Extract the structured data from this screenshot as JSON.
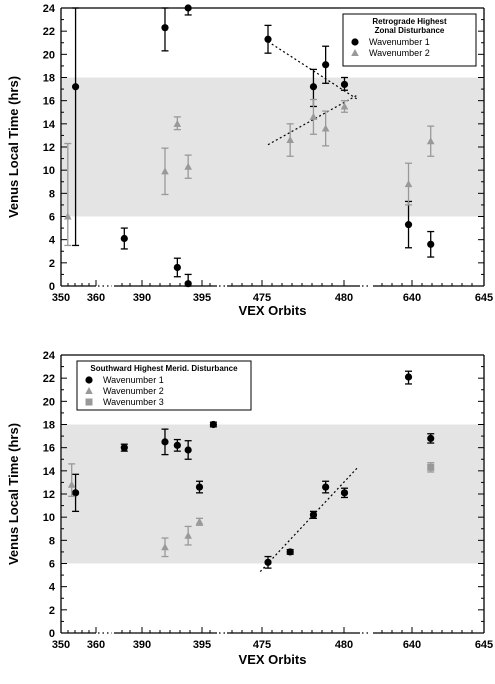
{
  "chart_data": [
    {
      "type": "scatter",
      "ylabel": "Venus Local Time (hrs)",
      "xlabel": "VEX Orbits",
      "ylim": [
        0,
        24
      ],
      "yticks": [
        0,
        2,
        4,
        6,
        8,
        10,
        12,
        14,
        16,
        18,
        20,
        22,
        24
      ],
      "x_tick_labels": [
        "350",
        "360",
        "390",
        "395",
        "475",
        "480",
        "640",
        "645"
      ],
      "x_axis_note": "broken axis with dotted gaps",
      "shaded_band": [
        6,
        18
      ],
      "legend": {
        "title_lines": [
          "Retrograde Highest",
          "Zonal Disturbance"
        ],
        "placement": "top-right"
      },
      "series": [
        {
          "name": "Wavenumber 1",
          "marker": "circle",
          "color": "#000000",
          "points": [
            {
              "x": 356,
              "y": 17.2,
              "err_low": 13.7,
              "err_high": 24
            },
            {
              "x": 382,
              "y": 4.1,
              "err_low": 0.9,
              "err_high": 0.9
            },
            {
              "x": 389.9,
              "y": 22.3,
              "err_low": 2.0,
              "err_high": 1.7
            },
            {
              "x": 392.3,
              "y": 1.6,
              "err_low": 0.8,
              "err_high": 0.8
            },
            {
              "x": 394.4,
              "y": 24.0,
              "err_low": 0.6,
              "err_high": 0
            },
            {
              "x": 394.4,
              "y": 0.2,
              "err_low": 0.2,
              "err_high": 0.8
            },
            {
              "x": 473.7,
              "y": 21.3,
              "err_low": 1.2,
              "err_high": 1.2
            },
            {
              "x": 477.8,
              "y": 17.2,
              "err_low": 1.7,
              "err_high": 1.5
            },
            {
              "x": 478.9,
              "y": 19.1,
              "err_low": 1.6,
              "err_high": 1.6
            },
            {
              "x": 480.6,
              "y": 17.4,
              "err_low": 0.5,
              "err_high": 0.6
            },
            {
              "x": 638.2,
              "y": 5.3,
              "err_low": 2.0,
              "err_high": 2.0
            },
            {
              "x": 640.2,
              "y": 3.6,
              "err_low": 1.1,
              "err_high": 1.1
            }
          ]
        },
        {
          "name": "Wavenumber 2",
          "marker": "triangle",
          "color": "#999999",
          "points": [
            {
              "x": 352.8,
              "y": 6.0,
              "err_low": 2.5,
              "err_high": 6.3
            },
            {
              "x": 389.9,
              "y": 9.9,
              "err_low": 2.0,
              "err_high": 2.0
            },
            {
              "x": 392.3,
              "y": 14.0,
              "err_low": 0.5,
              "err_high": 0.6
            },
            {
              "x": 394.4,
              "y": 10.3,
              "err_low": 1.0,
              "err_high": 1.0
            },
            {
              "x": 475.7,
              "y": 12.6,
              "err_low": 1.4,
              "err_high": 1.4
            },
            {
              "x": 477.8,
              "y": 14.6,
              "err_low": 1.5,
              "err_high": 1.5
            },
            {
              "x": 478.9,
              "y": 13.6,
              "err_low": 1.5,
              "err_high": 1.5
            },
            {
              "x": 480.6,
              "y": 15.5,
              "err_low": 0.5,
              "err_high": 0.5
            },
            {
              "x": 638.2,
              "y": 8.8,
              "err_low": 1.8,
              "err_high": 1.8
            },
            {
              "x": 640.2,
              "y": 12.5,
              "err_low": 1.3,
              "err_high": 1.3
            }
          ]
        }
      ],
      "trend_lines": [
        {
          "x": [
            473.7,
            481.8
          ],
          "y": [
            21.1,
            16.1
          ]
        },
        {
          "x": [
            473.7,
            481.8
          ],
          "y": [
            12.2,
            16.5
          ]
        }
      ]
    },
    {
      "type": "scatter",
      "ylabel": "Venus Local Time (hrs)",
      "xlabel": "VEX Orbits",
      "ylim": [
        0,
        24
      ],
      "yticks": [
        0,
        2,
        4,
        6,
        8,
        10,
        12,
        14,
        16,
        18,
        20,
        22,
        24
      ],
      "x_tick_labels": [
        "350",
        "360",
        "390",
        "395",
        "475",
        "480",
        "640",
        "645"
      ],
      "x_axis_note": "broken axis with dotted gaps",
      "shaded_band": [
        6,
        18
      ],
      "legend": {
        "title_lines": [
          "Southward Highest Merid. Disturbance"
        ],
        "placement": "top-left"
      },
      "series": [
        {
          "name": "Wavenumber 1",
          "marker": "circle",
          "color": "#000000",
          "points": [
            {
              "x": 356,
              "y": 12.1,
              "err_low": 1.6,
              "err_high": 1.6
            },
            {
              "x": 382,
              "y": 16.0,
              "err_low": 0.3,
              "err_high": 0.3
            },
            {
              "x": 389.9,
              "y": 16.5,
              "err_low": 1.1,
              "err_high": 1.1
            },
            {
              "x": 392.3,
              "y": 16.2,
              "err_low": 0.5,
              "err_high": 0.5
            },
            {
              "x": 394.4,
              "y": 15.8,
              "err_low": 0.8,
              "err_high": 0.8
            },
            {
              "x": 396.6,
              "y": 12.6,
              "err_low": 0.5,
              "err_high": 0.5
            },
            {
              "x": 399.3,
              "y": 18.0,
              "err_low": 0.2,
              "err_high": 0.2
            },
            {
              "x": 473.7,
              "y": 6.1,
              "err_low": 0.5,
              "err_high": 0.5
            },
            {
              "x": 475.7,
              "y": 7.0,
              "err_low": 0.2,
              "err_high": 0.2
            },
            {
              "x": 477.8,
              "y": 10.2,
              "err_low": 0.3,
              "err_high": 0.3
            },
            {
              "x": 478.9,
              "y": 12.6,
              "err_low": 0.5,
              "err_high": 0.5
            },
            {
              "x": 480.6,
              "y": 12.1,
              "err_low": 0.4,
              "err_high": 0.4
            },
            {
              "x": 638.2,
              "y": 22.1,
              "err_low": 0.6,
              "err_high": 0.5
            },
            {
              "x": 640.2,
              "y": 16.8,
              "err_low": 0.4,
              "err_high": 0.4
            }
          ]
        },
        {
          "name": "Wavenumber 2",
          "marker": "triangle",
          "color": "#999999",
          "points": [
            {
              "x": 354.4,
              "y": 12.8,
              "err_low": 1.0,
              "err_high": 1.8
            },
            {
              "x": 389.9,
              "y": 7.4,
              "err_low": 0.8,
              "err_high": 0.8
            },
            {
              "x": 394.4,
              "y": 8.4,
              "err_low": 0.8,
              "err_high": 0.8
            },
            {
              "x": 396.6,
              "y": 9.6,
              "err_low": 0.3,
              "err_high": 0.3
            }
          ]
        },
        {
          "name": "Wavenumber 3",
          "marker": "square",
          "color": "#999999",
          "points": [
            {
              "x": 640.2,
              "y": 14.3,
              "err_low": 0.4,
              "err_high": 0.4
            }
          ]
        }
      ],
      "trend_lines": [
        {
          "x": [
            473.0,
            481.8
          ],
          "y": [
            5.3,
            14.3
          ]
        }
      ]
    }
  ]
}
